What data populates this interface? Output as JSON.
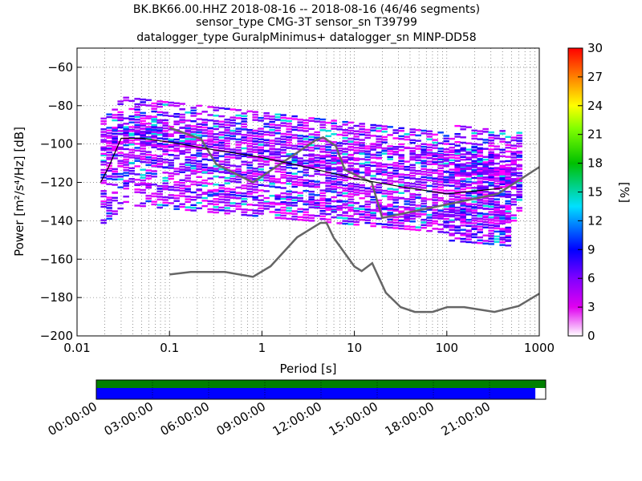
{
  "title": {
    "line1": "BK.BK66.00.HHZ   2018-08-16 -- 2018-08-16  (46/46 segments)",
    "line2": "sensor_type CMG-3T sensor_sn T39799",
    "line3": "datalogger_type GuralpMinimus+ datalogger_sn MINP-DD58"
  },
  "chart_data": {
    "type": "heatmap",
    "xlabel": "Period [s]",
    "ylabel": "Power [m²/s⁴/Hz] [dB]",
    "x_scale": "log",
    "xlim": [
      0.01,
      1000
    ],
    "ylim": [
      -200,
      -50
    ],
    "x_ticks": [
      0.01,
      0.1,
      1,
      10,
      100,
      1000
    ],
    "x_tick_labels": [
      "0.01",
      "0.1",
      "1",
      "10",
      "100",
      "1000"
    ],
    "y_ticks": [
      -200,
      -180,
      -160,
      -140,
      -120,
      -100,
      -80,
      -60
    ],
    "y_tick_labels": [
      "−200",
      "−180",
      "−160",
      "−140",
      "−120",
      "−100",
      "−80",
      "−60"
    ],
    "grid": true,
    "colorbar": {
      "label": "[%]",
      "range": [
        0,
        30
      ],
      "ticks": [
        0,
        3,
        6,
        9,
        12,
        15,
        18,
        21,
        24,
        27,
        30
      ]
    },
    "noise_model_high": {
      "x": [
        0.1,
        0.22,
        0.32,
        0.8,
        3.8,
        4.6,
        6.3,
        7.9,
        15.4,
        20,
        354.8,
        1000
      ],
      "y": [
        -91.5,
        -97.4,
        -110.5,
        -120,
        -98,
        -96.5,
        -101,
        -113.5,
        -120,
        -138.5,
        -126,
        -112
      ]
    },
    "noise_model_low": {
      "x": [
        0.1,
        0.17,
        0.4,
        0.8,
        1.24,
        2.4,
        4.3,
        5,
        6,
        10,
        12,
        15.6,
        21.9,
        31.6,
        45,
        70,
        101,
        154,
        328,
        600,
        1000
      ],
      "y": [
        -168,
        -166.7,
        -166.7,
        -169.2,
        -163.7,
        -148.6,
        -141.1,
        -141.1,
        -149,
        -163.8,
        -166.2,
        -162.1,
        -177.5,
        -185,
        -187.5,
        -187.5,
        -185,
        -185,
        -187.5,
        -184.4,
        -178
      ]
    },
    "mode_line": {
      "x": [
        0.018,
        0.022,
        0.03,
        0.05,
        0.1,
        0.3,
        1,
        3,
        10,
        30,
        100,
        250,
        400
      ],
      "y": [
        -120,
        -112,
        -97,
        -97,
        -99,
        -103,
        -107,
        -112,
        -118,
        -122,
        -126,
        -124,
        -123
      ]
    }
  },
  "timeline": {
    "tick_labels": [
      "00:00:00",
      "03:00:00",
      "06:00:00",
      "09:00:00",
      "12:00:00",
      "15:00:00",
      "18:00:00",
      "21:00:00"
    ],
    "coverage_fraction": 0.977,
    "colors": {
      "data": "#0000ff",
      "gap": "#ffffff",
      "processed": "#008000"
    }
  }
}
